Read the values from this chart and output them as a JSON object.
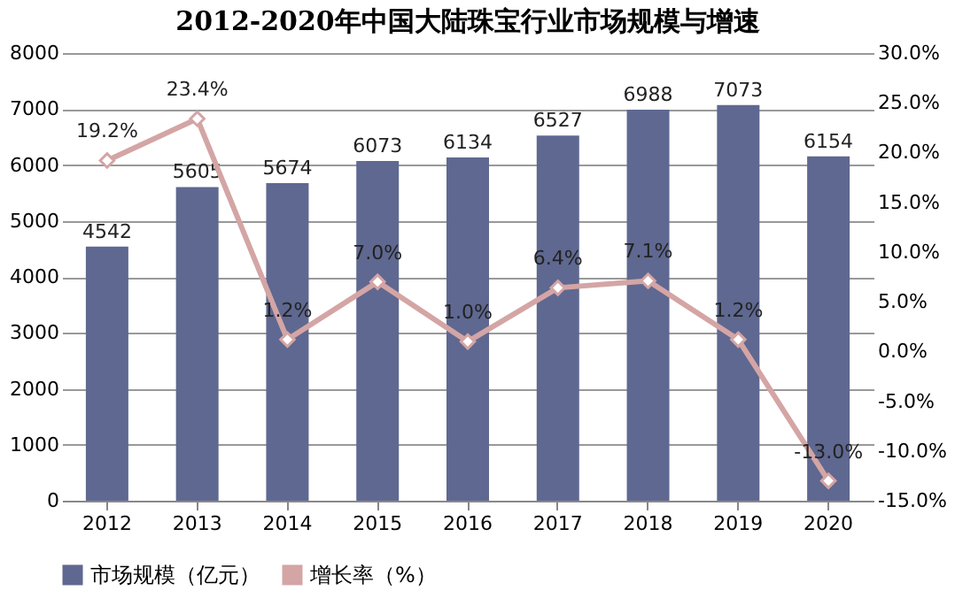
{
  "chart_data": {
    "type": "bar",
    "title": "2012-2020年中国大陆珠宝行业市场规模与增速",
    "categories": [
      "2012",
      "2013",
      "2014",
      "2015",
      "2016",
      "2017",
      "2018",
      "2019",
      "2020"
    ],
    "series": [
      {
        "name": "市场规模（亿元）",
        "color": "#5f6890",
        "values": [
          4542,
          5605,
          5674,
          6073,
          6134,
          6527,
          6988,
          7073,
          6154
        ],
        "value_labels": [
          "4542",
          "5605",
          "5674",
          "6073",
          "6134",
          "6527",
          "6988",
          "7073",
          "6154"
        ]
      },
      {
        "name": "增长率（%）",
        "type": "line",
        "axis": "y2",
        "color": "#d4a5a5",
        "marker": "diamond",
        "values": [
          19.2,
          23.4,
          1.2,
          7.0,
          1.0,
          6.4,
          7.1,
          1.2,
          -13.0
        ],
        "value_labels": [
          "19.2%",
          "23.4%",
          "1.2%",
          "7.0%",
          "1.0%",
          "6.4%",
          "7.1%",
          "1.2%",
          "-13.0%"
        ]
      }
    ],
    "ylim": [
      0,
      8000
    ],
    "yticks": [
      0,
      1000,
      2000,
      3000,
      4000,
      5000,
      6000,
      7000,
      8000
    ],
    "y2lim": [
      -15,
      30
    ],
    "y2ticks": [
      {
        "value": -15,
        "label": "-15.0%"
      },
      {
        "value": -10,
        "label": "-10.0%"
      },
      {
        "value": -5,
        "label": "-5.0%"
      },
      {
        "value": 0,
        "label": "0.0%"
      },
      {
        "value": 5,
        "label": "5.0%"
      },
      {
        "value": 10,
        "label": "10.0%"
      },
      {
        "value": 15,
        "label": "15.0%"
      },
      {
        "value": 20,
        "label": "20.0%"
      },
      {
        "value": 25,
        "label": "25.0%"
      },
      {
        "value": 30,
        "label": "30.0%"
      }
    ],
    "grid": "y",
    "legend": "bottom"
  }
}
